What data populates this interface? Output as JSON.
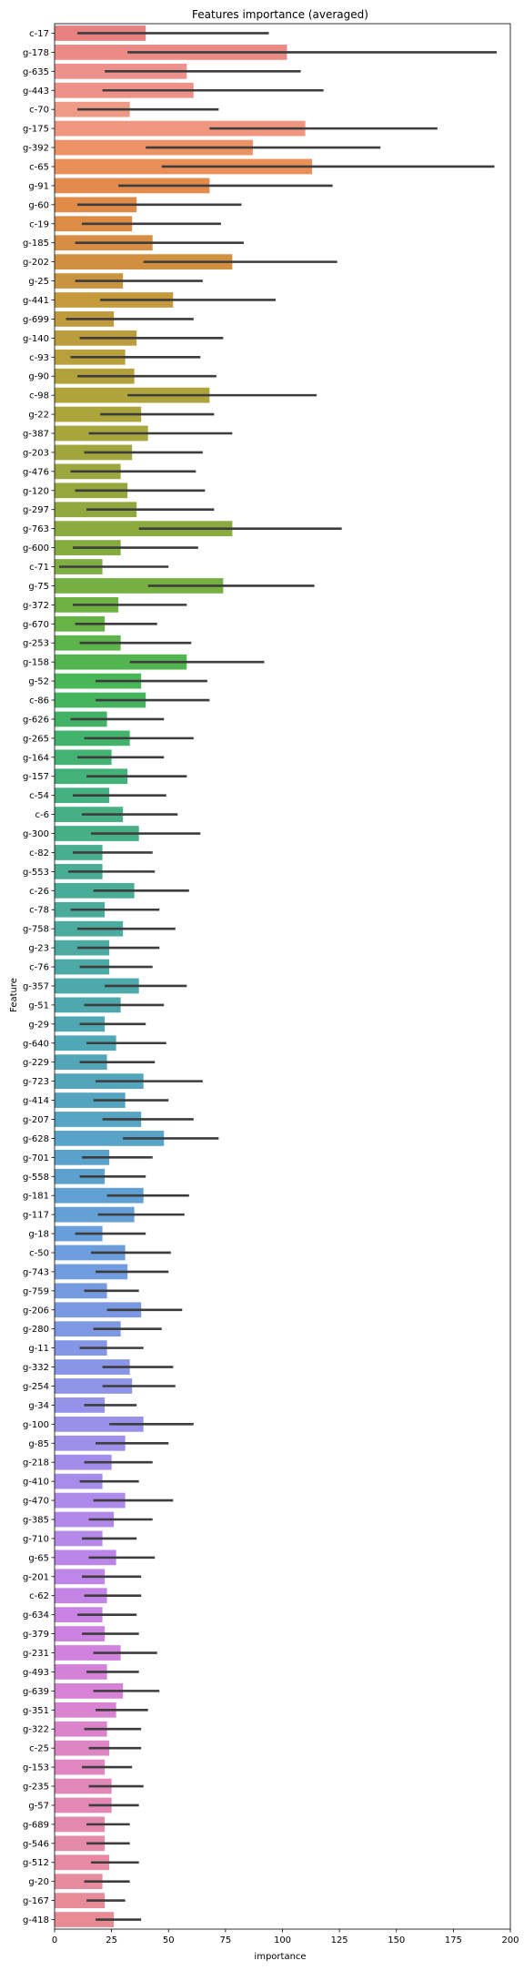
{
  "chart_data": {
    "type": "bar",
    "orientation": "horizontal",
    "title": "Features importance (averaged)",
    "xlabel": "importance",
    "ylabel": "Feature",
    "xlim": [
      0,
      200
    ],
    "xticks": [
      0,
      25,
      50,
      75,
      100,
      125,
      150,
      175,
      200
    ],
    "grid": false,
    "error_bars": true,
    "categories": [
      "c-17",
      "g-178",
      "g-635",
      "g-443",
      "c-70",
      "g-175",
      "g-392",
      "c-65",
      "g-91",
      "g-60",
      "c-19",
      "g-185",
      "g-202",
      "g-25",
      "g-441",
      "g-699",
      "g-140",
      "c-93",
      "g-90",
      "c-98",
      "g-22",
      "g-387",
      "g-203",
      "g-476",
      "g-120",
      "g-297",
      "g-763",
      "g-600",
      "c-71",
      "g-75",
      "g-372",
      "g-670",
      "g-253",
      "g-158",
      "g-52",
      "c-86",
      "g-626",
      "g-265",
      "g-164",
      "g-157",
      "c-54",
      "c-6",
      "g-300",
      "c-82",
      "g-553",
      "c-26",
      "c-78",
      "g-758",
      "g-23",
      "c-76",
      "g-357",
      "g-51",
      "g-29",
      "g-640",
      "g-229",
      "g-723",
      "g-414",
      "g-207",
      "g-628",
      "g-701",
      "g-558",
      "g-181",
      "g-117",
      "g-18",
      "c-50",
      "g-743",
      "g-759",
      "g-206",
      "g-280",
      "g-11",
      "g-332",
      "g-254",
      "g-34",
      "g-100",
      "g-85",
      "g-218",
      "g-410",
      "g-470",
      "g-385",
      "g-710",
      "g-65",
      "g-201",
      "c-62",
      "g-634",
      "g-379",
      "g-231",
      "g-493",
      "g-639",
      "g-351",
      "g-322",
      "c-25",
      "g-153",
      "g-235",
      "g-57",
      "g-689",
      "g-546",
      "g-512",
      "g-20",
      "g-167",
      "g-418"
    ],
    "values": [
      40,
      102,
      58,
      61,
      33,
      110,
      87,
      113,
      68,
      36,
      34,
      43,
      78,
      30,
      52,
      26,
      36,
      31,
      35,
      68,
      38,
      41,
      34,
      29,
      32,
      36,
      78,
      29,
      21,
      74,
      28,
      22,
      29,
      58,
      38,
      40,
      23,
      33,
      25,
      32,
      24,
      30,
      37,
      21,
      21,
      35,
      22,
      30,
      24,
      24,
      37,
      29,
      22,
      27,
      23,
      39,
      31,
      38,
      48,
      24,
      22,
      39,
      35,
      21,
      31,
      32,
      23,
      38,
      29,
      23,
      33,
      34,
      22,
      39,
      31,
      25,
      21,
      31,
      26,
      21,
      27,
      22,
      23,
      21,
      22,
      29,
      23,
      30,
      27,
      23,
      24,
      22,
      25,
      25,
      22,
      22,
      24,
      21,
      22,
      26
    ],
    "err_low": [
      10,
      32,
      22,
      21,
      10,
      68,
      40,
      47,
      28,
      10,
      12,
      9,
      39,
      9,
      20,
      5,
      11,
      7,
      10,
      32,
      20,
      15,
      13,
      7,
      9,
      14,
      37,
      8,
      2,
      41,
      8,
      9,
      11,
      33,
      18,
      18,
      7,
      13,
      10,
      14,
      8,
      12,
      16,
      8,
      6,
      17,
      7,
      10,
      10,
      11,
      22,
      13,
      11,
      14,
      11,
      18,
      17,
      21,
      30,
      12,
      11,
      23,
      19,
      9,
      16,
      18,
      13,
      23,
      17,
      11,
      21,
      21,
      13,
      24,
      18,
      13,
      11,
      17,
      15,
      12,
      15,
      12,
      13,
      10,
      12,
      17,
      14,
      17,
      18,
      13,
      15,
      12,
      15,
      15,
      14,
      14,
      16,
      13,
      14,
      18
    ],
    "err_high": [
      94,
      194,
      108,
      118,
      72,
      168,
      143,
      193,
      122,
      82,
      73,
      83,
      124,
      65,
      97,
      61,
      74,
      64,
      71,
      115,
      70,
      78,
      65,
      62,
      66,
      70,
      126,
      63,
      50,
      114,
      58,
      45,
      60,
      92,
      67,
      68,
      48,
      61,
      48,
      58,
      49,
      54,
      64,
      43,
      44,
      59,
      46,
      53,
      46,
      43,
      58,
      48,
      40,
      49,
      44,
      65,
      50,
      61,
      72,
      43,
      40,
      59,
      57,
      40,
      51,
      50,
      37,
      56,
      47,
      39,
      52,
      53,
      36,
      61,
      50,
      43,
      37,
      52,
      43,
      36,
      44,
      38,
      38,
      36,
      37,
      45,
      37,
      46,
      41,
      38,
      38,
      34,
      39,
      37,
      33,
      33,
      37,
      33,
      31,
      38
    ],
    "colors": [
      "#e8807f",
      "#ec8b86",
      "#ee918d",
      "#ee9289",
      "#ef9a86",
      "#ef9580",
      "#ec9265",
      "#eb8f59",
      "#e38a4d",
      "#e08c48",
      "#dc8c45",
      "#d78d44",
      "#d09040",
      "#c9943f",
      "#c7993d",
      "#c09b3d",
      "#bc9d3d",
      "#b8a03d",
      "#b3a23c",
      "#afa33b",
      "#aba53b",
      "#a6a63c",
      "#a0a63c",
      "#9ca73d",
      "#96a83d",
      "#90a83e",
      "#8bab3e",
      "#85ac3f",
      "#7eae41",
      "#76b042",
      "#6db143",
      "#66b346",
      "#5cb44a",
      "#53b550",
      "#49b657",
      "#44b45f",
      "#42b366",
      "#42b36d",
      "#43b273",
      "#44b17a",
      "#45b180",
      "#46b084",
      "#47af88",
      "#48ae8d",
      "#48ad92",
      "#49ac96",
      "#4aab9a",
      "#4bab9e",
      "#4caaa2",
      "#4ca9a6",
      "#4da9aa",
      "#4ea8ad",
      "#4fa7b1",
      "#50a7b5",
      "#52a6b8",
      "#53a5bc",
      "#54a4c0",
      "#56a4c3",
      "#58a3c7",
      "#5aa2cb",
      "#5da1cf",
      "#60a0d2",
      "#649fd6",
      "#689eda",
      "#6c9ddd",
      "#719cdf",
      "#759ae0",
      "#7a99e2",
      "#7f98e4",
      "#8496e5",
      "#8995e6",
      "#8f94e8",
      "#9492e9",
      "#9990e9",
      "#9e8fea",
      "#a38deb",
      "#a88ceb",
      "#ad8aeb",
      "#b289ea",
      "#b688ea",
      "#bb86e9",
      "#c085e8",
      "#c484e6",
      "#c983e4",
      "#cd82e1",
      "#d181de",
      "#d481da",
      "#d782d6",
      "#da83d1",
      "#dc84cb",
      "#de85c5",
      "#e086c0",
      "#e287ba",
      "#e388b4",
      "#e489ae",
      "#e58aa8",
      "#e68ba3",
      "#e78b9e",
      "#e88b99",
      "#e98b94"
    ]
  }
}
